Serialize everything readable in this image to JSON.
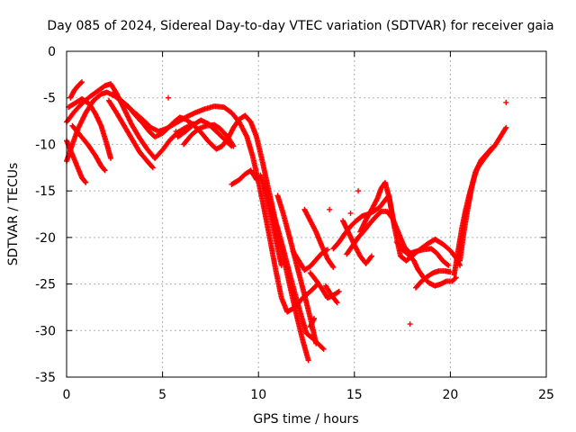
{
  "chart_data": {
    "type": "scatter",
    "title": "Day 085 of 2024, Sidereal Day-to-day VTEC variation (SDTVAR) for receiver gaia",
    "xlabel": "GPS time / hours",
    "ylabel": "SDTVAR / TECUs",
    "xlim": [
      0,
      25
    ],
    "ylim": [
      -35,
      0
    ],
    "xticks": [
      0,
      5,
      10,
      15,
      20,
      25
    ],
    "yticks": [
      0,
      -5,
      -10,
      -15,
      -20,
      -25,
      -30,
      -35
    ],
    "grid": true,
    "marker": "plus",
    "color": "#ff0000",
    "series": [
      {
        "name": "s1",
        "points": [
          [
            0,
            -11.8
          ],
          [
            0.3,
            -10
          ],
          [
            0.6,
            -8.3
          ],
          [
            1,
            -6.6
          ],
          [
            1.4,
            -5.3
          ],
          [
            1.8,
            -4.6
          ],
          [
            2.1,
            -4.4
          ],
          [
            2.5,
            -4.8
          ],
          [
            3,
            -5.6
          ],
          [
            3.5,
            -6.5
          ],
          [
            4,
            -7.4
          ],
          [
            4.4,
            -8.2
          ],
          [
            4.8,
            -8.6
          ],
          [
            5.2,
            -8.3
          ],
          [
            5.7,
            -7.7
          ],
          [
            6.2,
            -7.1
          ],
          [
            6.7,
            -6.6
          ],
          [
            7.2,
            -6.2
          ],
          [
            7.7,
            -5.9
          ],
          [
            8.2,
            -6
          ],
          [
            8.6,
            -6.6
          ],
          [
            9,
            -7.6
          ],
          [
            9.4,
            -9.2
          ],
          [
            9.7,
            -11.3
          ],
          [
            10,
            -14
          ],
          [
            10.3,
            -17
          ],
          [
            10.6,
            -20.2
          ],
          [
            10.9,
            -23.5
          ],
          [
            11.2,
            -26.5
          ],
          [
            11.5,
            -28
          ],
          [
            11.9,
            -27.5
          ],
          [
            12.3,
            -26.5
          ],
          [
            12.7,
            -25.8
          ],
          [
            13.1,
            -25
          ]
        ]
      },
      {
        "name": "s2",
        "points": [
          [
            0,
            -7.6
          ],
          [
            0.4,
            -6.5
          ],
          [
            0.8,
            -5.6
          ],
          [
            1.2,
            -4.9
          ],
          [
            1.6,
            -4.3
          ],
          [
            2,
            -3.7
          ],
          [
            2.3,
            -3.5
          ],
          [
            2.6,
            -4.5
          ],
          [
            3,
            -6.2
          ],
          [
            3.4,
            -7.9
          ],
          [
            3.8,
            -9.3
          ],
          [
            4.2,
            -10.5
          ],
          [
            4.6,
            -11.5
          ],
          [
            5,
            -10.6
          ],
          [
            5.4,
            -9.5
          ],
          [
            5.8,
            -8.7
          ],
          [
            6.2,
            -8.2
          ],
          [
            6.6,
            -7.8
          ]
        ]
      },
      {
        "name": "s3",
        "points": [
          [
            0,
            -9.6
          ],
          [
            0.3,
            -11.1
          ],
          [
            0.6,
            -12.6
          ],
          [
            0.8,
            -13.6
          ],
          [
            1,
            -14.1
          ]
        ]
      },
      {
        "name": "s4",
        "points": [
          [
            0.1,
            -6
          ],
          [
            0.5,
            -5.5
          ],
          [
            0.8,
            -5.1
          ],
          [
            1.2,
            -5.7
          ],
          [
            1.5,
            -6.7
          ],
          [
            1.8,
            -8
          ],
          [
            2.1,
            -10
          ],
          [
            2.3,
            -11.5
          ]
        ]
      },
      {
        "name": "s5",
        "points": [
          [
            0.2,
            -5
          ],
          [
            0.4,
            -4.2
          ],
          [
            0.6,
            -3.7
          ],
          [
            0.8,
            -3.3
          ]
        ]
      },
      {
        "name": "s6",
        "points": [
          [
            0.3,
            -8
          ],
          [
            0.7,
            -9
          ],
          [
            1.1,
            -10
          ],
          [
            1.5,
            -11.2
          ],
          [
            1.8,
            -12.3
          ],
          [
            2,
            -12.8
          ]
        ]
      },
      {
        "name": "s7",
        "points": [
          [
            2.2,
            -5.3
          ],
          [
            2.6,
            -6.6
          ],
          [
            3,
            -8
          ],
          [
            3.4,
            -9.4
          ],
          [
            3.8,
            -10.8
          ],
          [
            4.2,
            -11.8
          ],
          [
            4.5,
            -12.5
          ]
        ]
      },
      {
        "name": "s8",
        "points": [
          [
            2.4,
            -4.6
          ],
          [
            2.8,
            -5.2
          ],
          [
            3.2,
            -5.9
          ],
          [
            3.6,
            -6.9
          ],
          [
            4,
            -7.8
          ],
          [
            4.3,
            -8.6
          ],
          [
            4.6,
            -9.2
          ],
          [
            5,
            -8.8
          ],
          [
            5.3,
            -8.2
          ],
          [
            5.6,
            -7.6
          ],
          [
            5.9,
            -7.1
          ],
          [
            6.2,
            -7.3
          ],
          [
            6.6,
            -7.9
          ],
          [
            7,
            -8.7
          ],
          [
            7.4,
            -9.7
          ],
          [
            7.8,
            -10.5
          ],
          [
            8.1,
            -10.2
          ],
          [
            8.4,
            -9.4
          ],
          [
            8.7,
            -8.2
          ],
          [
            9,
            -7.3
          ],
          [
            9.3,
            -6.9
          ],
          [
            9.6,
            -7.6
          ],
          [
            9.9,
            -9.2
          ],
          [
            10.2,
            -11.8
          ],
          [
            10.5,
            -14.6
          ],
          [
            10.8,
            -17.4
          ],
          [
            11.1,
            -20.3
          ],
          [
            11.4,
            -23
          ],
          [
            11.7,
            -25.8
          ],
          [
            12,
            -28.5
          ],
          [
            12.3,
            -31
          ],
          [
            12.6,
            -33.2
          ]
        ]
      },
      {
        "name": "s9",
        "points": [
          [
            5.8,
            -9.2
          ],
          [
            6.2,
            -8.6
          ],
          [
            6.6,
            -7.9
          ],
          [
            7,
            -7.4
          ],
          [
            7.4,
            -7.8
          ],
          [
            7.8,
            -8.6
          ],
          [
            8.2,
            -9.4
          ],
          [
            8.6,
            -10.2
          ]
        ]
      },
      {
        "name": "s10",
        "points": [
          [
            6.1,
            -10
          ],
          [
            6.5,
            -9
          ],
          [
            6.9,
            -8.3
          ],
          [
            7.3,
            -8
          ],
          [
            7.7,
            -7.9
          ],
          [
            8,
            -8.3
          ],
          [
            8.4,
            -9.2
          ],
          [
            8.7,
            -10.2
          ]
        ]
      },
      {
        "name": "s11",
        "points": [
          [
            8.6,
            -14.3
          ],
          [
            9,
            -13.8
          ],
          [
            9.3,
            -13.2
          ],
          [
            9.6,
            -12.8
          ],
          [
            9.9,
            -13.8
          ]
        ]
      },
      {
        "name": "s12",
        "points": [
          [
            10.1,
            -13.3
          ],
          [
            10.4,
            -15
          ],
          [
            10.7,
            -17
          ],
          [
            11,
            -19
          ],
          [
            11.3,
            -21.3
          ],
          [
            11.6,
            -23.7
          ],
          [
            11.9,
            -26
          ],
          [
            12.2,
            -28.2
          ],
          [
            12.5,
            -30.3
          ],
          [
            12.8,
            -30.8
          ],
          [
            13.1,
            -31.4
          ],
          [
            13.4,
            -32
          ]
        ]
      },
      {
        "name": "s13",
        "points": [
          [
            10.3,
            -14.5
          ],
          [
            10.6,
            -17.3
          ],
          [
            10.9,
            -20.2
          ],
          [
            11.2,
            -23
          ]
        ]
      },
      {
        "name": "s14",
        "points": [
          [
            11,
            -15.5
          ],
          [
            11.3,
            -17.5
          ],
          [
            11.6,
            -19.8
          ],
          [
            11.9,
            -22.2
          ],
          [
            12.2,
            -24.6
          ],
          [
            12.5,
            -27
          ],
          [
            12.8,
            -29.5
          ],
          [
            13,
            -31.4
          ]
        ]
      },
      {
        "name": "s15",
        "points": [
          [
            11.8,
            -21.5
          ],
          [
            12.1,
            -22.5
          ],
          [
            12.4,
            -23.5
          ],
          [
            12.7,
            -23.1
          ],
          [
            13,
            -22.4
          ],
          [
            13.3,
            -21.7
          ],
          [
            13.6,
            -21.3
          ]
        ]
      },
      {
        "name": "s16",
        "points": [
          [
            12.4,
            -17
          ],
          [
            12.7,
            -18.2
          ],
          [
            13,
            -19.4
          ],
          [
            13.3,
            -20.9
          ],
          [
            13.6,
            -22.3
          ],
          [
            13.9,
            -23.2
          ]
        ]
      },
      {
        "name": "s17",
        "points": [
          [
            12.7,
            -23.8
          ],
          [
            13,
            -24.6
          ],
          [
            13.3,
            -25.5
          ],
          [
            13.6,
            -26.5
          ],
          [
            13.9,
            -26.2
          ],
          [
            14.2,
            -25.8
          ]
        ]
      },
      {
        "name": "s18",
        "points": [
          [
            12.7,
            -29.6
          ],
          [
            12.9,
            -28.7
          ]
        ]
      },
      {
        "name": "s19",
        "points": [
          [
            13.5,
            -25.2
          ],
          [
            13.8,
            -26.2
          ],
          [
            14.1,
            -27
          ]
        ]
      },
      {
        "name": "s20",
        "points": [
          [
            13.9,
            -21.2
          ],
          [
            14.2,
            -20.5
          ],
          [
            14.5,
            -19.6
          ],
          [
            14.8,
            -18.8
          ],
          [
            15.1,
            -18.2
          ],
          [
            15.4,
            -17.7
          ],
          [
            15.7,
            -17.5
          ],
          [
            16,
            -17.2
          ],
          [
            16.3,
            -16.8
          ],
          [
            16.6,
            -16
          ],
          [
            16.8,
            -15.5
          ],
          [
            17.1,
            -19
          ],
          [
            17.4,
            -22
          ],
          [
            17.7,
            -22.5
          ],
          [
            18,
            -22
          ],
          [
            18.4,
            -21.3
          ],
          [
            18.8,
            -20.7
          ],
          [
            19.2,
            -20.2
          ],
          [
            19.6,
            -20.7
          ],
          [
            20,
            -21.4
          ],
          [
            20.3,
            -22.2
          ],
          [
            20.5,
            -23
          ]
        ]
      },
      {
        "name": "s21",
        "points": [
          [
            14.6,
            -21.8
          ],
          [
            14.9,
            -20.9
          ],
          [
            15.2,
            -20
          ],
          [
            15.5,
            -19.3
          ],
          [
            15.8,
            -18.5
          ],
          [
            16.1,
            -17.8
          ],
          [
            16.4,
            -17.2
          ],
          [
            16.7,
            -17.2
          ],
          [
            17,
            -18
          ],
          [
            17.3,
            -19.5
          ],
          [
            17.6,
            -21
          ],
          [
            17.9,
            -21.7
          ],
          [
            18.2,
            -21.5
          ],
          [
            18.6,
            -21.3
          ],
          [
            19,
            -21.2
          ],
          [
            19.3,
            -21.7
          ],
          [
            19.6,
            -22.5
          ],
          [
            19.9,
            -23
          ]
        ]
      },
      {
        "name": "s22",
        "points": [
          [
            14.4,
            -18.2
          ],
          [
            14.7,
            -19.5
          ],
          [
            15,
            -20.8
          ],
          [
            15.3,
            -22
          ],
          [
            15.6,
            -22.8
          ],
          [
            15.9,
            -22
          ]
        ]
      },
      {
        "name": "s23",
        "points": [
          [
            15.3,
            -19.4
          ],
          [
            15.6,
            -18.1
          ],
          [
            15.9,
            -17
          ],
          [
            16.2,
            -15.8
          ],
          [
            16.4,
            -14.7
          ],
          [
            16.6,
            -14.1
          ],
          [
            16.8,
            -15.6
          ],
          [
            17.1,
            -19
          ]
        ]
      },
      {
        "name": "s24",
        "points": [
          [
            17.2,
            -20.5
          ],
          [
            17.5,
            -21.3
          ],
          [
            17.8,
            -21.8
          ],
          [
            18.1,
            -22.5
          ],
          [
            18.3,
            -23.4
          ],
          [
            18.6,
            -24.3
          ],
          [
            18.9,
            -24.9
          ],
          [
            19.2,
            -25.2
          ],
          [
            19.5,
            -25
          ],
          [
            19.8,
            -24.7
          ],
          [
            20.1,
            -24.7
          ],
          [
            20.3,
            -24.3
          ]
        ]
      },
      {
        "name": "s25",
        "points": [
          [
            18.2,
            -25.4
          ],
          [
            18.5,
            -24.7
          ],
          [
            18.8,
            -24.2
          ],
          [
            19.1,
            -23.8
          ],
          [
            19.4,
            -23.6
          ],
          [
            19.7,
            -23.6
          ],
          [
            20,
            -23.7
          ]
        ]
      },
      {
        "name": "s26",
        "points": [
          [
            20.2,
            -24
          ],
          [
            20.4,
            -21.5
          ],
          [
            20.6,
            -19
          ],
          [
            20.8,
            -17
          ],
          [
            21,
            -15.3
          ],
          [
            21.2,
            -13.8
          ],
          [
            21.4,
            -12.6
          ],
          [
            21.7,
            -11.7
          ],
          [
            22,
            -10.9
          ],
          [
            22.3,
            -10.2
          ],
          [
            22.6,
            -9.2
          ],
          [
            22.9,
            -8.2
          ]
        ]
      },
      {
        "name": "s27",
        "points": [
          [
            20.5,
            -22.5
          ],
          [
            20.7,
            -19.5
          ],
          [
            20.9,
            -17
          ],
          [
            21.1,
            -14.8
          ],
          [
            21.3,
            -13
          ],
          [
            21.6,
            -11.7
          ],
          [
            21.9,
            -11
          ],
          [
            22.2,
            -10.3
          ]
        ]
      }
    ],
    "isolated_points": [
      [
        5.3,
        -5
      ],
      [
        5.7,
        -8.6
      ],
      [
        13.7,
        -17
      ],
      [
        14.8,
        -17.4
      ],
      [
        15.2,
        -15
      ],
      [
        17.9,
        -29.3
      ],
      [
        22.9,
        -5.5
      ]
    ]
  }
}
